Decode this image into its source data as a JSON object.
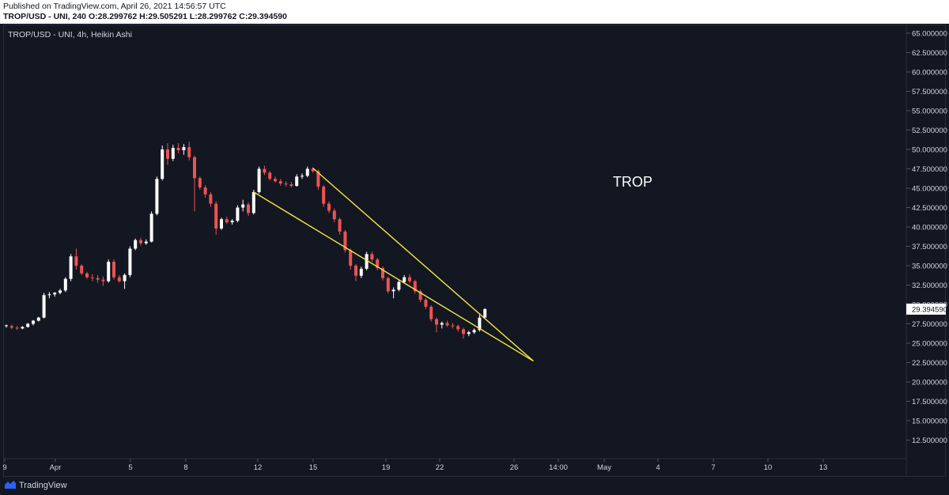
{
  "header": {
    "published": "Published on TradingView.com, April 26, 2021 14:56:57 UTC",
    "ohlc": "TROP/USD - UNI, 240 O:28.299762 H:29.505291 L:28.299762 C:29.394590"
  },
  "chart_legend": "TROP/USD - UNI, 4h, Heikin Ashi",
  "annotation_text": "TROP",
  "footer": {
    "brand": "TradingView"
  },
  "colors": {
    "background": "#131722",
    "up_candle": "#ffffff",
    "down_candle": "#ef5350",
    "trendline": "#f5e642",
    "axis_text": "#d1d4dc",
    "price_label_bg": "#ffffff"
  },
  "chart_data": {
    "type": "candlestick",
    "style": "Heikin Ashi",
    "symbol": "TROP/USD",
    "exchange": "UNI",
    "interval": "4h",
    "ylim": [
      10,
      66
    ],
    "y_ticks": [
      "65.000000",
      "62.500000",
      "60.000000",
      "57.500000",
      "55.000000",
      "52.500000",
      "50.000000",
      "47.500000",
      "45.000000",
      "42.500000",
      "40.000000",
      "37.500000",
      "35.000000",
      "32.500000",
      "30.000000",
      "27.500000",
      "25.000000",
      "22.500000",
      "20.000000",
      "17.500000",
      "15.000000",
      "12.500000"
    ],
    "x_ticks": [
      "9",
      "Apr",
      "5",
      "8",
      "12",
      "15",
      "19",
      "22",
      "26",
      "14:00",
      "May",
      "4",
      "7",
      "10",
      "13"
    ],
    "current_price": "29.394590",
    "grid": false,
    "candles": [
      [
        27.2,
        27.4,
        27.0,
        27.3
      ],
      [
        27.2,
        27.4,
        26.8,
        27.0
      ],
      [
        27.0,
        27.2,
        26.7,
        26.9
      ],
      [
        26.9,
        27.2,
        26.8,
        27.1
      ],
      [
        27.1,
        27.6,
        27.0,
        27.5
      ],
      [
        27.5,
        28.0,
        27.3,
        27.9
      ],
      [
        27.9,
        28.4,
        27.8,
        28.3
      ],
      [
        28.3,
        31.5,
        28.2,
        31.2
      ],
      [
        31.2,
        31.6,
        30.8,
        31.3
      ],
      [
        31.3,
        31.6,
        31.0,
        31.5
      ],
      [
        31.5,
        32.0,
        31.3,
        31.8
      ],
      [
        31.8,
        33.5,
        31.6,
        33.3
      ],
      [
        33.3,
        36.5,
        33.0,
        36.2
      ],
      [
        36.2,
        37.2,
        34.5,
        35.0
      ],
      [
        35.0,
        35.2,
        33.8,
        34.0
      ],
      [
        34.0,
        34.2,
        33.3,
        33.5
      ],
      [
        33.5,
        33.9,
        33.0,
        33.4
      ],
      [
        33.4,
        33.8,
        32.8,
        33.2
      ],
      [
        33.2,
        33.6,
        32.4,
        33.0
      ],
      [
        33.0,
        35.8,
        32.8,
        35.5
      ],
      [
        35.5,
        35.8,
        33.2,
        33.5
      ],
      [
        33.5,
        33.8,
        32.8,
        33.0
      ],
      [
        33.0,
        34.0,
        32.0,
        33.8
      ],
      [
        33.8,
        37.5,
        33.5,
        37.2
      ],
      [
        37.2,
        38.5,
        37.0,
        38.3
      ],
      [
        38.3,
        38.6,
        37.6,
        37.9
      ],
      [
        37.9,
        38.4,
        37.7,
        38.1
      ],
      [
        38.1,
        42.0,
        38.0,
        41.7
      ],
      [
        41.7,
        46.5,
        41.5,
        46.2
      ],
      [
        46.2,
        50.5,
        46.0,
        50.0
      ],
      [
        50.0,
        50.8,
        48.0,
        48.8
      ],
      [
        48.8,
        50.6,
        48.5,
        50.2
      ],
      [
        50.2,
        50.8,
        49.5,
        49.9
      ],
      [
        49.9,
        50.7,
        49.3,
        50.3
      ],
      [
        50.3,
        51.0,
        48.6,
        49.0
      ],
      [
        49.0,
        49.2,
        42.0,
        46.3
      ],
      [
        46.3,
        46.5,
        44.8,
        45.1
      ],
      [
        45.1,
        45.4,
        43.8,
        44.2
      ],
      [
        44.2,
        44.5,
        42.6,
        43.0
      ],
      [
        43.0,
        43.3,
        39.0,
        39.8
      ],
      [
        39.8,
        41.2,
        39.6,
        41.0
      ],
      [
        41.0,
        41.3,
        40.4,
        40.6
      ],
      [
        40.6,
        41.0,
        40.3,
        40.8
      ],
      [
        40.8,
        42.8,
        40.6,
        42.5
      ],
      [
        42.5,
        43.5,
        42.0,
        42.9
      ],
      [
        42.9,
        43.2,
        41.4,
        41.8
      ],
      [
        41.8,
        44.8,
        41.6,
        44.5
      ],
      [
        44.5,
        47.8,
        44.3,
        47.5
      ],
      [
        47.5,
        47.9,
        46.7,
        47.0
      ],
      [
        47.0,
        47.2,
        46.0,
        46.2
      ],
      [
        46.2,
        46.5,
        45.7,
        45.9
      ],
      [
        45.9,
        46.2,
        45.3,
        45.6
      ],
      [
        45.6,
        45.9,
        45.2,
        45.5
      ],
      [
        45.5,
        45.8,
        45.1,
        45.3
      ],
      [
        45.3,
        46.8,
        45.2,
        46.5
      ],
      [
        46.5,
        46.9,
        46.2,
        46.6
      ],
      [
        46.6,
        47.8,
        46.4,
        47.5
      ],
      [
        47.5,
        47.7,
        47.0,
        47.2
      ],
      [
        47.2,
        47.4,
        44.8,
        45.2
      ],
      [
        45.2,
        45.4,
        42.6,
        43.0
      ],
      [
        43.0,
        43.3,
        41.8,
        42.1
      ],
      [
        42.1,
        42.4,
        40.6,
        41.0
      ],
      [
        41.0,
        41.2,
        39.0,
        39.4
      ],
      [
        39.4,
        39.6,
        36.7,
        37.0
      ],
      [
        37.0,
        37.2,
        34.5,
        35.0
      ],
      [
        35.0,
        35.2,
        33.0,
        33.7
      ],
      [
        33.7,
        34.9,
        33.4,
        34.6
      ],
      [
        34.6,
        36.8,
        34.4,
        36.5
      ],
      [
        36.5,
        36.8,
        35.5,
        35.8
      ],
      [
        35.8,
        36.0,
        34.4,
        34.7
      ],
      [
        34.7,
        34.9,
        33.1,
        33.4
      ],
      [
        33.4,
        33.6,
        31.4,
        31.7
      ],
      [
        31.7,
        32.2,
        30.8,
        31.9
      ],
      [
        31.9,
        33.2,
        31.7,
        32.9
      ],
      [
        32.9,
        33.8,
        32.7,
        33.5
      ],
      [
        33.5,
        33.9,
        32.7,
        33.0
      ],
      [
        33.0,
        33.2,
        31.4,
        31.7
      ],
      [
        31.7,
        31.9,
        30.3,
        30.6
      ],
      [
        30.6,
        30.8,
        29.4,
        29.7
      ],
      [
        29.7,
        29.9,
        27.8,
        28.1
      ],
      [
        28.1,
        28.3,
        26.4,
        27.4
      ],
      [
        27.4,
        27.8,
        26.9,
        27.6
      ],
      [
        27.6,
        27.9,
        27.1,
        27.3
      ],
      [
        27.3,
        27.6,
        26.9,
        27.2
      ],
      [
        27.2,
        27.4,
        26.5,
        26.8
      ],
      [
        26.8,
        27.0,
        25.6,
        26.2
      ],
      [
        26.2,
        26.6,
        25.9,
        26.4
      ],
      [
        26.4,
        26.9,
        26.2,
        26.7
      ],
      [
        26.7,
        28.8,
        26.5,
        28.3
      ],
      [
        28.3,
        29.5,
        28.3,
        29.4
      ]
    ],
    "trendlines": [
      {
        "from": {
          "candle": 46,
          "price": 44.5
        },
        "to": {
          "candle": 98,
          "price": 22.7
        }
      },
      {
        "from": {
          "candle": 57,
          "price": 47.6
        },
        "to": {
          "candle": 98,
          "price": 22.7
        }
      }
    ]
  }
}
